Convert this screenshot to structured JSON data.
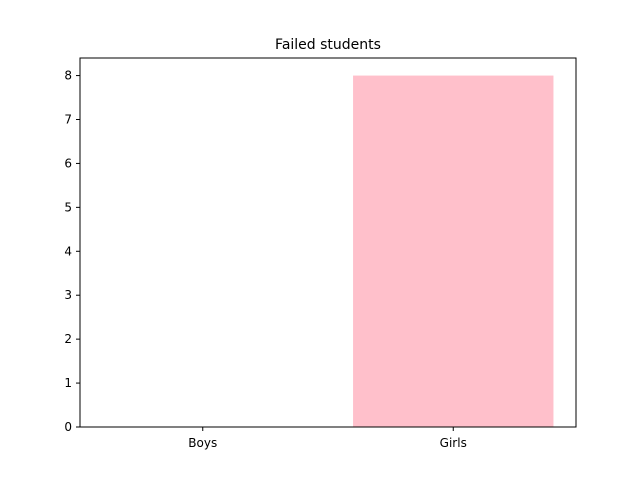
{
  "chart_data": {
    "type": "bar",
    "title": "Failed students",
    "xlabel": "",
    "ylabel": "",
    "categories": [
      "Boys",
      "Girls"
    ],
    "values": [
      0,
      8
    ],
    "bar_color": "#ffc0cb",
    "ylim": [
      0,
      8.4
    ],
    "yticks": [
      0,
      1,
      2,
      3,
      4,
      5,
      6,
      7,
      8
    ],
    "grid": false,
    "legend": "none"
  }
}
